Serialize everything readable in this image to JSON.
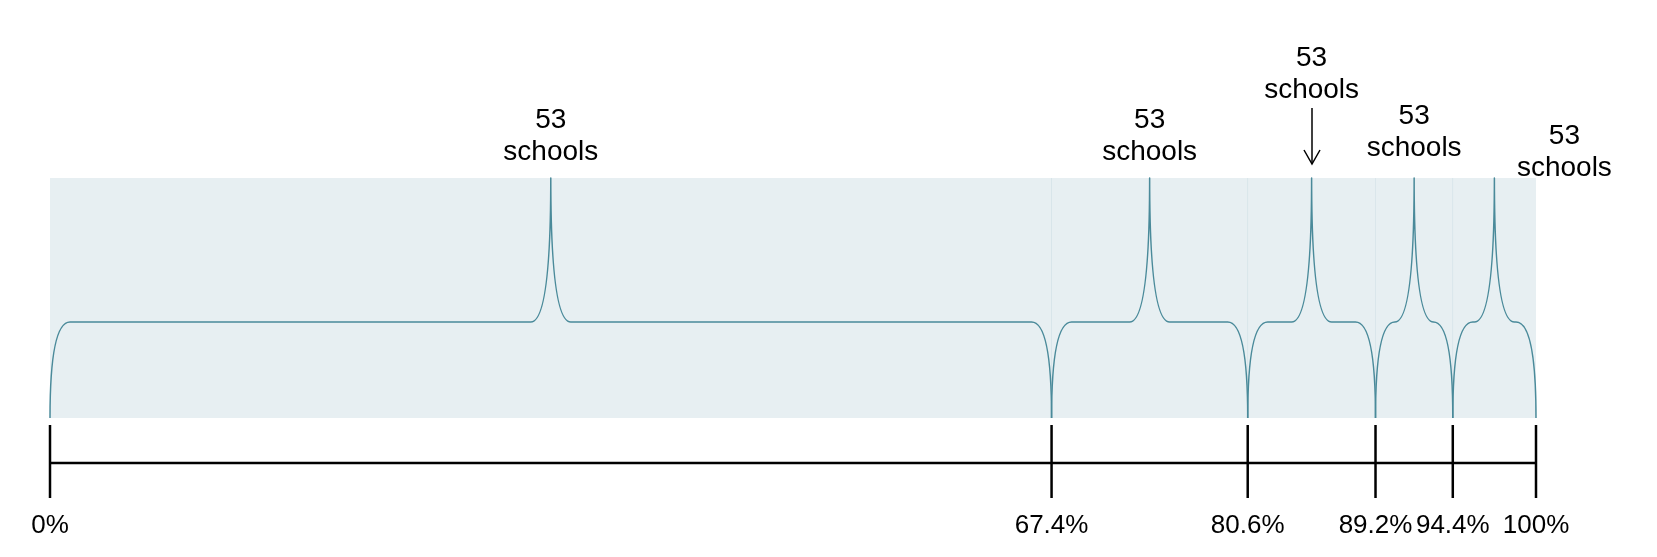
{
  "chart_data": {
    "type": "bar",
    "orientation": "horizontal",
    "stacked": true,
    "categories": [
      null
    ],
    "series": [
      {
        "color": "#4a8a9a",
        "values": [
          67.4
        ]
      },
      {
        "color": "#4a8a9a",
        "values": [
          13.2
        ]
      },
      {
        "color": "#4a8a9a",
        "values": [
          8.6
        ]
      },
      {
        "color": "#4a8a9a",
        "values": [
          5.2
        ]
      },
      {
        "color": "#4a8a9a",
        "values": [
          5.6
        ]
      }
    ],
    "xlim": [
      0,
      100
    ],
    "xticks": [
      {
        "value": 0,
        "label": "0%"
      },
      {
        "value": 67.4,
        "label": "67.4%"
      },
      {
        "value": 80.6,
        "label": "80.6%"
      },
      {
        "value": 89.2,
        "label": "89.2%"
      },
      {
        "value": 94.4,
        "label": "94.4%"
      },
      {
        "value": 100,
        "label": "100%"
      }
    ],
    "annotations": [
      "53 schools",
      "53 schools",
      "53 schools",
      "53 schools",
      "53 schools"
    ],
    "legend": false
  }
}
